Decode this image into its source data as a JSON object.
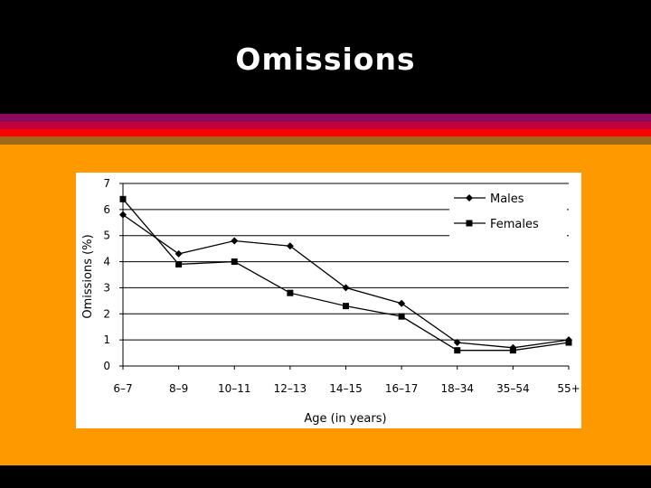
{
  "slide": {
    "title": "Omissions",
    "colors": {
      "background": "#000000",
      "panel": "#ff9900",
      "stripes": [
        "#8c0a5e",
        "#c2003c",
        "#ff0000",
        "#9c6b1a"
      ]
    }
  },
  "chart_data": {
    "type": "line",
    "title": "",
    "xlabel": "Age (in years)",
    "ylabel": "Omissions (%)",
    "categories": [
      "6–7",
      "8–9",
      "10–11",
      "12–13",
      "14–15",
      "16–17",
      "18–34",
      "35–54",
      "55+"
    ],
    "ylim": [
      0,
      7
    ],
    "yticks": [
      0,
      1,
      2,
      3,
      4,
      5,
      6,
      7
    ],
    "grid": true,
    "legend_position": "top-right",
    "series": [
      {
        "name": "Males",
        "marker": "diamond",
        "values": [
          5.8,
          4.3,
          4.8,
          4.6,
          3.0,
          2.4,
          0.9,
          0.7,
          1.0
        ]
      },
      {
        "name": "Females",
        "marker": "square",
        "values": [
          6.4,
          3.9,
          4.0,
          2.8,
          2.3,
          1.9,
          0.6,
          0.6,
          0.9
        ]
      }
    ]
  }
}
